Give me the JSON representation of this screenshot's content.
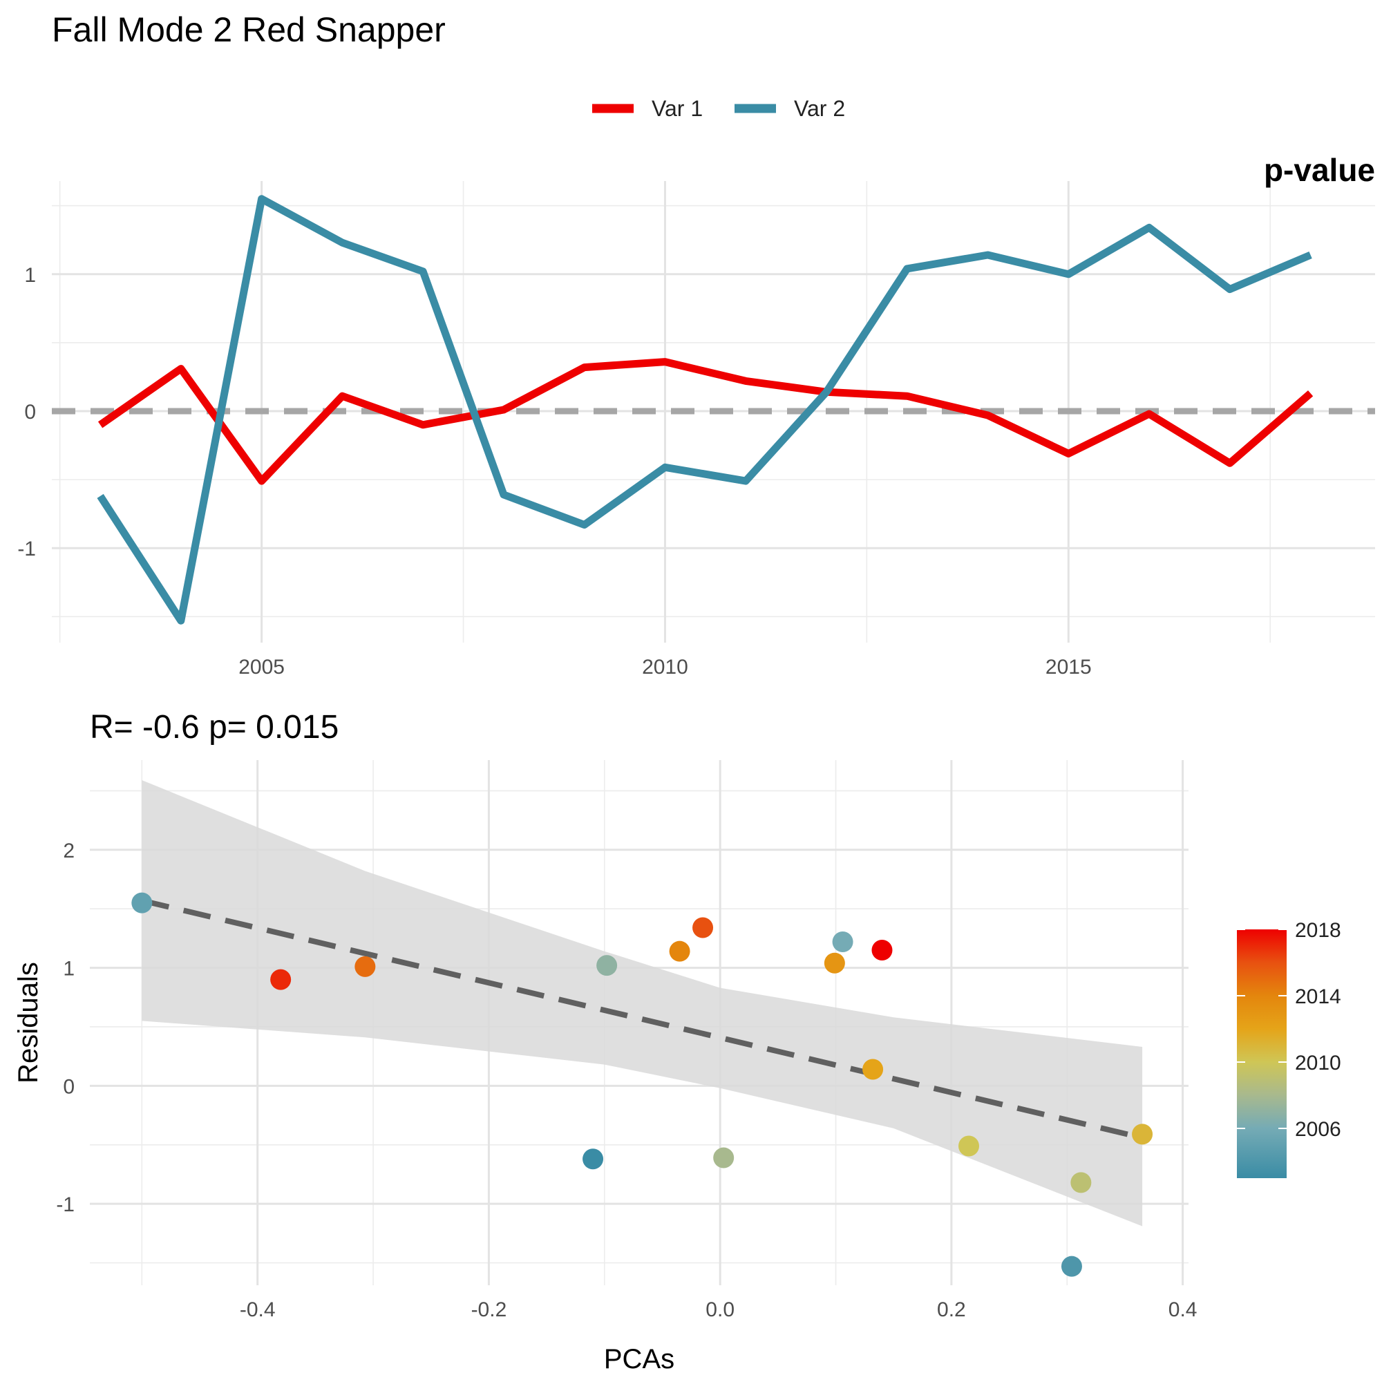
{
  "title": "Fall Mode 2 Red Snapper",
  "colors": {
    "var1": "#ee0000",
    "var2": "#3a8ca5",
    "zero_line": "#a6a6a6",
    "fit_line": "#606060",
    "ribbon": "#d9d9d9"
  },
  "chart_data": [
    {
      "type": "line",
      "legend": {
        "position": "top",
        "entries": [
          "Var 1",
          "Var 2"
        ]
      },
      "clipped_label": "p-value",
      "x": [
        2003,
        2004,
        2005,
        2006,
        2007,
        2008,
        2009,
        2010,
        2011,
        2012,
        2013,
        2014,
        2015,
        2016,
        2017,
        2018
      ],
      "series": [
        {
          "name": "Var 1",
          "values": [
            -0.1,
            0.31,
            -0.51,
            0.11,
            -0.1,
            0.01,
            0.32,
            0.36,
            0.22,
            0.14,
            0.11,
            -0.03,
            -0.31,
            -0.02,
            -0.38,
            0.13
          ]
        },
        {
          "name": "Var 2",
          "values": [
            -0.62,
            -1.53,
            1.55,
            1.23,
            1.02,
            -0.61,
            -0.83,
            -0.41,
            -0.51,
            0.14,
            1.04,
            1.14,
            1.0,
            1.34,
            0.89,
            1.14
          ]
        }
      ],
      "xlim": [
        2002.4,
        2018.8
      ],
      "ylim": [
        -1.69,
        1.68
      ],
      "x_ticks": [
        "2005",
        "2010",
        "2015"
      ],
      "y_ticks": [
        "-1",
        "0",
        "1"
      ],
      "reference_line": 0,
      "grid": true
    },
    {
      "type": "scatter",
      "subtitle": "R= -0.6  p= 0.015",
      "xlabel": "PCAs",
      "ylabel": "Residuals",
      "xlim": [
        -0.545,
        0.405
      ],
      "ylim": [
        -1.69,
        2.76
      ],
      "x_ticks": [
        "-0.4",
        "-0.2",
        "0.0",
        "0.2",
        "0.4"
      ],
      "y_ticks": [
        "-1",
        "0",
        "1",
        "2"
      ],
      "points": [
        {
          "year": 2003,
          "x": -0.11,
          "y": -0.62
        },
        {
          "year": 2004,
          "x": 0.304,
          "y": -1.53
        },
        {
          "year": 2005,
          "x": -0.5,
          "y": 1.55
        },
        {
          "year": 2006,
          "x": 0.106,
          "y": 1.22
        },
        {
          "year": 2007,
          "x": -0.098,
          "y": 1.02
        },
        {
          "year": 2008,
          "x": 0.003,
          "y": -0.61
        },
        {
          "year": 2009,
          "x": 0.312,
          "y": -0.82
        },
        {
          "year": 2010,
          "x": 0.215,
          "y": -0.51
        },
        {
          "year": 2011,
          "x": 0.365,
          "y": -0.41
        },
        {
          "year": 2012,
          "x": 0.132,
          "y": 0.14
        },
        {
          "year": 2013,
          "x": 0.099,
          "y": 1.04
        },
        {
          "year": 2014,
          "x": -0.035,
          "y": 1.14
        },
        {
          "year": 2015,
          "x": -0.307,
          "y": 1.01
        },
        {
          "year": 2016,
          "x": -0.015,
          "y": 1.34
        },
        {
          "year": 2017,
          "x": -0.38,
          "y": 0.9
        },
        {
          "year": 2018,
          "x": 0.14,
          "y": 1.15
        }
      ],
      "fit": {
        "x": [
          -0.5,
          0.365
        ],
        "y": [
          1.57,
          -0.44
        ]
      },
      "confidence_band": {
        "x": [
          -0.5,
          -0.307,
          -0.1,
          0.0,
          0.15,
          0.365
        ],
        "upper": [
          2.59,
          1.82,
          1.14,
          0.83,
          0.58,
          0.33
        ],
        "lower": [
          0.55,
          0.41,
          0.18,
          -0.02,
          -0.36,
          -1.19
        ]
      },
      "colorbar": {
        "range": [
          2003,
          2018
        ],
        "ticks": [
          "2006",
          "2010",
          "2014",
          "2018"
        ],
        "stops": [
          {
            "year": 2003,
            "color": "#3a8ca5"
          },
          {
            "year": 2006,
            "color": "#75abb5"
          },
          {
            "year": 2008,
            "color": "#a8b98e"
          },
          {
            "year": 2010,
            "color": "#cfc656"
          },
          {
            "year": 2012,
            "color": "#e5a419"
          },
          {
            "year": 2014,
            "color": "#e4860d"
          },
          {
            "year": 2016,
            "color": "#e85110"
          },
          {
            "year": 2018,
            "color": "#ee0000"
          }
        ]
      },
      "grid": true
    }
  ]
}
